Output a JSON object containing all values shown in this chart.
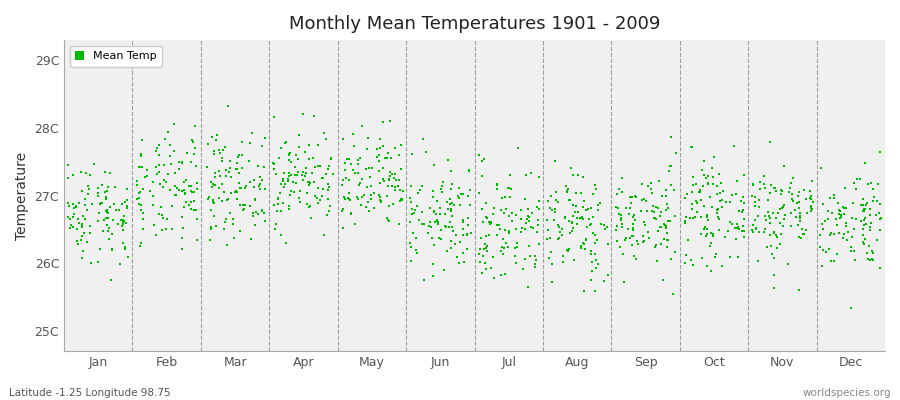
{
  "title": "Monthly Mean Temperatures 1901 - 2009",
  "ylabel": "Temperature",
  "xlabel_labels": [
    "Jan",
    "Feb",
    "Mar",
    "Apr",
    "May",
    "Jun",
    "Jul",
    "Aug",
    "Sep",
    "Oct",
    "Nov",
    "Dec"
  ],
  "ytick_labels": [
    "25C",
    "26C",
    "27C",
    "28C",
    "29C"
  ],
  "ytick_values": [
    25,
    26,
    27,
    28,
    29
  ],
  "ylim": [
    24.7,
    29.3
  ],
  "marker_color": "#00bb00",
  "bg_color": "#f0f0f0",
  "subtitle_left": "Latitude -1.25 Longitude 98.75",
  "subtitle_right": "worldspecies.org",
  "legend_label": "Mean Temp",
  "years": 109,
  "month_means": [
    26.75,
    27.05,
    27.15,
    27.25,
    27.15,
    26.65,
    26.55,
    26.55,
    26.65,
    26.75,
    26.75,
    26.65
  ],
  "month_stds": [
    0.38,
    0.42,
    0.38,
    0.36,
    0.38,
    0.4,
    0.45,
    0.42,
    0.38,
    0.36,
    0.38,
    0.38
  ],
  "random_seed": 42,
  "figwidth": 9.0,
  "figheight": 4.0,
  "dpi": 100
}
